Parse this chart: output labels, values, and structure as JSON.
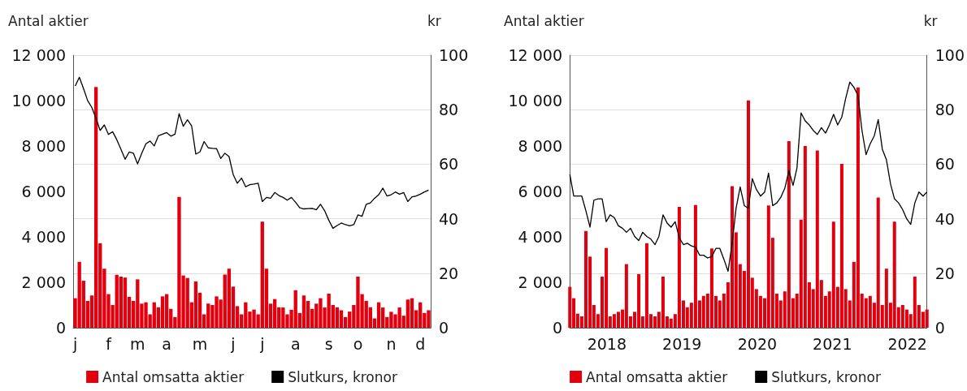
{
  "chart_data": [
    {
      "type": "bar",
      "ylabel": "Antal aktier",
      "y2label": "kr",
      "categories": [
        "j",
        null,
        null,
        null,
        null,
        null,
        null,
        null,
        "f",
        null,
        null,
        null,
        null,
        null,
        null,
        "m",
        null,
        null,
        null,
        null,
        null,
        null,
        "a",
        null,
        null,
        null,
        null,
        null,
        null,
        null,
        "m",
        null,
        null,
        null,
        null,
        null,
        null,
        null,
        "j",
        null,
        null,
        null,
        null,
        null,
        null,
        "j",
        null,
        null,
        null,
        null,
        null,
        null,
        null,
        "a",
        null,
        null,
        null,
        null,
        null,
        null,
        null,
        "s",
        null,
        null,
        null,
        null,
        null,
        null,
        "o",
        null,
        null,
        null,
        null,
        null,
        null,
        null,
        "n",
        null,
        null,
        null,
        null,
        null,
        null,
        "d",
        null,
        null
      ],
      "ylim": [
        0,
        12000
      ],
      "yticks": [
        0,
        {
          "value": 2000,
          "label": "2 000"
        },
        {
          "value": 4000,
          "label": "4 000"
        },
        {
          "value": 6000,
          "label": "6 000"
        },
        {
          "value": 8000,
          "label": "8 000"
        },
        {
          "value": 10000,
          "label": "10 000"
        },
        {
          "value": 12000,
          "label": "12 000"
        }
      ],
      "y2lim": [
        0,
        100
      ],
      "y2ticks": [
        0,
        20,
        40,
        60,
        80,
        100
      ],
      "grid": "y2",
      "legend": "bottom",
      "series": [
        {
          "name": "Antal omsatta aktier",
          "color": "#e2000f",
          "values": [
            1300,
            2900,
            2070,
            1180,
            1420,
            10600,
            3720,
            2600,
            1480,
            1000,
            2330,
            2250,
            2210,
            1360,
            1180,
            2130,
            1060,
            1120,
            590,
            1120,
            900,
            1380,
            1480,
            830,
            470,
            5760,
            2300,
            2190,
            1120,
            2040,
            1540,
            590,
            1060,
            1000,
            1380,
            1240,
            2340,
            2600,
            1810,
            950,
            590,
            1120,
            710,
            800,
            590,
            4670,
            2600,
            1060,
            1260,
            900,
            890,
            590,
            790,
            1650,
            650,
            1420,
            1180,
            830,
            1060,
            1300,
            890,
            1500,
            1000,
            900,
            770,
            470,
            710,
            1000,
            2250,
            1480,
            1180,
            900,
            410,
            1120,
            890,
            470,
            700,
            590,
            890,
            530,
            1240,
            1300,
            770,
            1120,
            650,
            770
          ]
        },
        {
          "name": "Slutkurs, kronor",
          "type": "line",
          "axis": "y2",
          "color": "#000000",
          "values": [
            88.7,
            91.9,
            87.7,
            83.3,
            80.8,
            76.8,
            72.4,
            74.4,
            70.9,
            71.9,
            69,
            65.5,
            61.8,
            64.5,
            64,
            60.1,
            64,
            67.5,
            68.5,
            66.7,
            70.4,
            71,
            71.6,
            70.3,
            71,
            78.5,
            73.9,
            76.3,
            74.1,
            63.7,
            64.5,
            68.3,
            66,
            65.8,
            65.7,
            62.1,
            64,
            62.8,
            56.2,
            53,
            54.9,
            51.7,
            52.5,
            52.7,
            53,
            46.3,
            47.8,
            47.5,
            49.6,
            48.5,
            47.8,
            46.8,
            47.8,
            46,
            44,
            43.6,
            43.7,
            43.8,
            43.3,
            45.3,
            42.9,
            39.4,
            36.5,
            37.5,
            38.4,
            37.8,
            37.4,
            37.8,
            41.4,
            40.9,
            45.3,
            45.8,
            47.5,
            48.8,
            51.2,
            48.3,
            48.8,
            49.8,
            49,
            49.6,
            46.3,
            48,
            48.3,
            49,
            49.8,
            50.5
          ]
        }
      ]
    },
    {
      "type": "bar",
      "ylabel": "Antal aktier",
      "y2label": "kr",
      "xlim": [
        "2018-01-01",
        "2022-10-04"
      ],
      "xticks": [
        {
          "value": "2018-07-01",
          "label": "2018"
        },
        {
          "value": "2019-07-01",
          "label": "2019"
        },
        {
          "value": "2020-07-01",
          "label": "2020"
        },
        {
          "value": "2021-07-01",
          "label": "2021"
        },
        {
          "value": "2022-07-01",
          "label": "2022"
        }
      ],
      "ylim": [
        0,
        12000
      ],
      "yticks": [
        0,
        {
          "value": 2000,
          "label": "2 000"
        },
        {
          "value": 4000,
          "label": "4 000"
        },
        {
          "value": 6000,
          "label": "6 000"
        },
        {
          "value": 8000,
          "label": "8 000"
        },
        {
          "value": 10000,
          "label": "10 000"
        },
        {
          "value": 12000,
          "label": "12 000"
        }
      ],
      "y2lim": [
        0,
        100
      ],
      "y2ticks": [
        0,
        20,
        40,
        60,
        80,
        100
      ],
      "grid": "y2",
      "legend": "bottom",
      "x": [
        "2018-01-02",
        "2018-01-21",
        "2018-02-09",
        "2018-03-01",
        "2018-03-21",
        "2018-04-10",
        "2018-04-29",
        "2018-05-19",
        "2018-06-08",
        "2018-06-28",
        "2018-07-17",
        "2018-08-06",
        "2018-08-26",
        "2018-09-15",
        "2018-10-04",
        "2018-10-24",
        "2018-11-13",
        "2018-12-03",
        "2018-12-22",
        "2019-01-11",
        "2019-01-31",
        "2019-02-20",
        "2019-03-11",
        "2019-03-31",
        "2019-04-20",
        "2019-05-09",
        "2019-05-29",
        "2019-06-18",
        "2019-07-08",
        "2019-07-27",
        "2019-08-16",
        "2019-09-05",
        "2019-09-25",
        "2019-10-14",
        "2019-11-03",
        "2019-11-23",
        "2019-12-13",
        "2020-01-01",
        "2020-01-21",
        "2020-02-10",
        "2020-03-01",
        "2020-03-20",
        "2020-04-09",
        "2020-04-29",
        "2020-05-19",
        "2020-06-07",
        "2020-06-27",
        "2020-07-17",
        "2020-08-06",
        "2020-08-25",
        "2020-09-14",
        "2020-10-04",
        "2020-10-23",
        "2020-11-12",
        "2020-12-02",
        "2020-12-22",
        "2021-01-10",
        "2021-01-30",
        "2021-02-19",
        "2021-03-11",
        "2021-03-30",
        "2021-04-19",
        "2021-05-09",
        "2021-05-29",
        "2021-06-17",
        "2021-07-07",
        "2021-07-27",
        "2021-08-16",
        "2021-09-04",
        "2021-09-24",
        "2021-10-14",
        "2021-11-03",
        "2021-11-22",
        "2021-12-12",
        "2022-01-01",
        "2022-01-21",
        "2022-02-09",
        "2022-03-01",
        "2022-03-21",
        "2022-04-10",
        "2022-04-29",
        "2022-05-19",
        "2022-06-08",
        "2022-06-28",
        "2022-07-17",
        "2022-08-06",
        "2022-08-26",
        "2022-09-15",
        "2022-10-04"
      ],
      "series": [
        {
          "name": "Antal omsatta aktier",
          "color": "#e2000f",
          "values": [
            1800,
            1300,
            620,
            500,
            4260,
            3130,
            1000,
            600,
            2250,
            3510,
            500,
            600,
            700,
            800,
            2800,
            500,
            700,
            2360,
            500,
            3720,
            600,
            500,
            700,
            2250,
            500,
            400,
            600,
            5320,
            1200,
            900,
            1100,
            5400,
            1200,
            1400,
            1500,
            3490,
            1400,
            1200,
            1500,
            2000,
            6230,
            4200,
            2800,
            2500,
            10010,
            2200,
            1700,
            1400,
            1300,
            5380,
            3960,
            1500,
            1200,
            1600,
            8210,
            1300,
            1500,
            4760,
            8000,
            2000,
            1700,
            7800,
            2100,
            1400,
            1600,
            4670,
            1800,
            7210,
            1700,
            1200,
            2900,
            10580,
            1500,
            1300,
            1400,
            1100,
            5730,
            1000,
            2600,
            1100,
            4670,
            900,
            1000,
            800,
            600,
            2250,
            1000,
            700,
            800
          ]
        },
        {
          "name": "Slutkurs, kronor",
          "type": "line",
          "axis": "y2",
          "color": "#000000",
          "values": [
            56.2,
            48.3,
            48.3,
            48.3,
            42.9,
            36.9,
            46.8,
            47.3,
            47.3,
            38.9,
            41.4,
            40.4,
            37.4,
            36.5,
            35,
            36.5,
            33.5,
            32,
            35,
            33.5,
            32.5,
            30.5,
            33.5,
            41.4,
            38.4,
            36.9,
            38.9,
            33,
            30.5,
            31,
            30,
            29.6,
            26.6,
            26.6,
            25.6,
            26.1,
            29.1,
            29.1,
            25.1,
            20.7,
            31,
            43.8,
            51.7,
            44.8,
            43.8,
            54.7,
            50.7,
            48.3,
            49.8,
            56.7,
            44.8,
            45.8,
            47.8,
            51.2,
            57.6,
            52.2,
            58.6,
            78.8,
            75.9,
            74.4,
            72.4,
            70.9,
            73.4,
            71.4,
            74.4,
            78.3,
            74.4,
            77.3,
            84.2,
            90.1,
            88.2,
            85.2,
            72.4,
            63.5,
            67.5,
            70.4,
            76.4,
            65.5,
            61.6,
            52.7,
            47.3,
            45.8,
            43.3,
            39.9,
            37.9,
            45.8,
            49.8,
            48.3,
            49.8
          ]
        }
      ]
    }
  ]
}
